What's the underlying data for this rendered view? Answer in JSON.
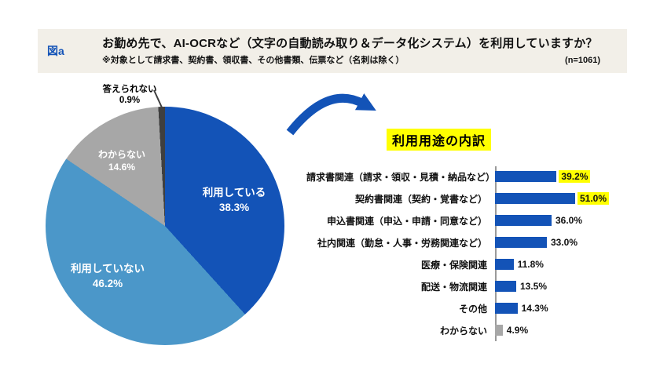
{
  "figure_label": "図a",
  "header": {
    "title": "お勤め先で、AI-OCRなど（文字の自動読み取り＆データ化システム）を利用していますか？",
    "note": "※対象として請求書、契約書、領収書、その他書類、伝票など（名刺は除く）",
    "sample_size": "(n=1061)"
  },
  "colors": {
    "primary_blue": "#1353B7",
    "light_blue": "#4B97C9",
    "gray": "#A7A7A7",
    "dark_gray": "#3F3F3F",
    "highlight_yellow": "#FFFF00",
    "header_bg": "#F2EFE8"
  },
  "chart_data": [
    {
      "type": "pie",
      "labels": [
        "利用している",
        "利用していない",
        "わからない",
        "答えられない"
      ],
      "values": [
        38.3,
        46.2,
        14.6,
        0.9
      ],
      "display_values": [
        "38.3%",
        "46.2%",
        "14.6%",
        "0.9%"
      ],
      "colors": [
        "#1353B7",
        "#4B97C9",
        "#A7A7A7",
        "#3F3F3F"
      ],
      "start_angle": "top",
      "direction": "clockwise",
      "legend_position": "none"
    },
    {
      "type": "bar",
      "orientation": "horizontal",
      "title": "利用用途の内訳",
      "categories": [
        "請求書関連（請求・領収・見積・納品など）",
        "契約書関連（契約・覚書など）",
        "申込書関連（申込・申請・同意など）",
        "社内関連（勤怠・人事・労務関連など）",
        "医療・保険関連",
        "配送・物流関連",
        "その他",
        "わからない"
      ],
      "values": [
        39.2,
        51.0,
        36.0,
        33.0,
        11.8,
        13.5,
        14.3,
        4.9
      ],
      "display_values": [
        "39.2%",
        "51.0%",
        "36.0%",
        "33.0%",
        "11.8%",
        "13.5%",
        "14.3%",
        "4.9%"
      ],
      "highlighted": [
        true,
        true,
        false,
        false,
        false,
        false,
        false,
        false
      ],
      "bar_colors": [
        "#1353B7",
        "#1353B7",
        "#1353B7",
        "#1353B7",
        "#1353B7",
        "#1353B7",
        "#1353B7",
        "#A7A7A7"
      ],
      "xlim": [
        0,
        55
      ],
      "grid": false,
      "legend_position": "none"
    }
  ]
}
